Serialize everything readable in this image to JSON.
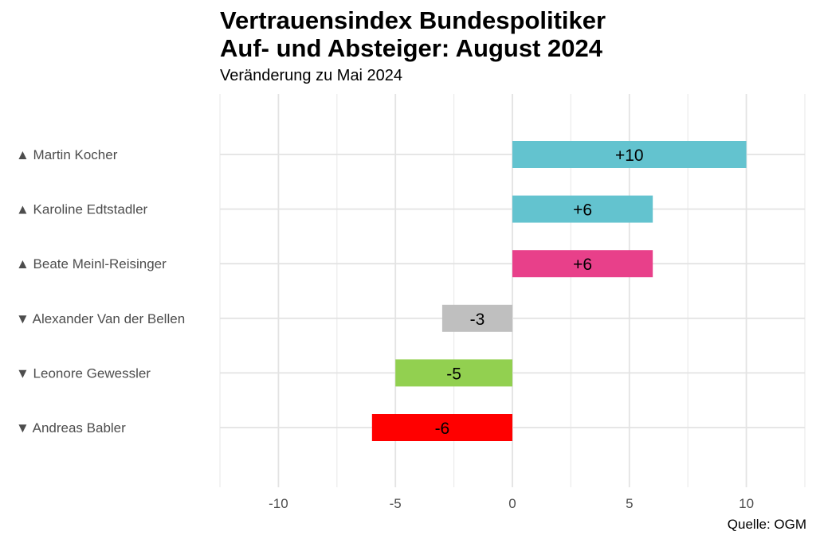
{
  "chart_data": {
    "type": "bar",
    "orientation": "horizontal",
    "title_line1": "Vertrauensindex Bundespolitiker",
    "title_line2": "Auf- und Absteiger: August 2024",
    "subtitle": "Veränderung zu Mai 2024",
    "caption": "Quelle: OGM",
    "xlim": [
      -12.5,
      12.5
    ],
    "x_ticks": [
      -10,
      -5,
      0,
      5,
      10
    ],
    "x_tick_labels": [
      "-10",
      "-5",
      "0",
      "5",
      "10"
    ],
    "grid": true,
    "legend": "none",
    "bars": [
      {
        "label": "▲ Martin Kocher",
        "value": 10,
        "value_label": "+10",
        "color": "#63c3cf"
      },
      {
        "label": "▲ Karoline Edtstadler",
        "value": 6,
        "value_label": "+6",
        "color": "#63c3cf"
      },
      {
        "label": "▲ Beate Meinl-Reisinger",
        "value": 6,
        "value_label": "+6",
        "color": "#e8408a"
      },
      {
        "label": "▼ Alexander Van der Bellen",
        "value": -3,
        "value_label": "-3",
        "color": "#bfbfbf"
      },
      {
        "label": "▼ Leonore Gewessler",
        "value": -5,
        "value_label": "-5",
        "color": "#92d050"
      },
      {
        "label": "▼ Andreas Babler",
        "value": -6,
        "value_label": "-6",
        "color": "#ff0000"
      }
    ]
  }
}
